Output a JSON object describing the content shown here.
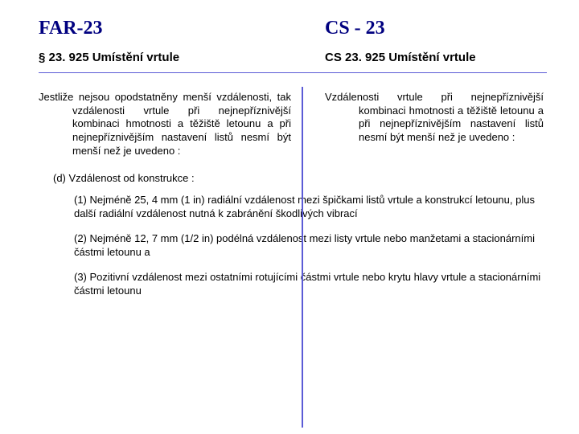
{
  "header": {
    "left_title": "FAR-23",
    "right_title": "CS - 23"
  },
  "subheader": {
    "left": "§ 23. 925 Umístění vrtule",
    "right": "CS 23. 925 Umístění vrtule"
  },
  "paragraph": {
    "left": "Jestliže nejsou opodstatněny menší vzdálenosti, tak vzdálenosti vrtule při nejnepříznivější kombinaci hmotnosti a těžiště letounu a při nejnepříznivějším nastavení listů nesmí být menší než je uvedeno :",
    "right": "Vzdálenosti vrtule při nejnepříznivější kombinaci hmotnosti a těžiště letounu a při nejnepříznivějším nastavení listů nesmí být menší než je uvedeno :"
  },
  "section_d_label": "(d) Vzdálenost od konstrukce :",
  "items": [
    "(1) Nejméně 25, 4 mm (1 in) radiální vzdálenost mezi špičkami listů vrtule a konstrukcí letounu, plus další radiální vzdálenost nutná k zabránění škodlivých vibrací",
    "(2) Nejméně 12, 7 mm (1/2 in) podélná vzdálenost mezi listy vrtule nebo manžetami a stacionárními částmi letounu a",
    "(3) Pozitivní vzdálenost mezi ostatními rotujícími částmi vrtule nebo krytu hlavy vrtule a stacionárními částmi letounu"
  ],
  "colors": {
    "accent": "#000080",
    "line": "#5b5bd6",
    "text": "#000000",
    "background": "#ffffff"
  }
}
